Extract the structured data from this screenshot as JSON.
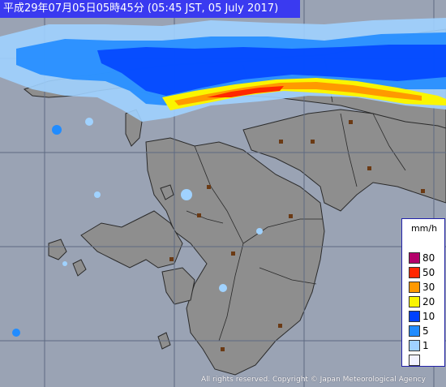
{
  "header": {
    "title": "平成29年07月05日05時45分 (05:45 JST, 05 July 2017)"
  },
  "legend": {
    "unit": "mm/h",
    "items": [
      {
        "label": "80",
        "color": "#b4006a"
      },
      {
        "label": "50",
        "color": "#ff2800"
      },
      {
        "label": "30",
        "color": "#ff9900"
      },
      {
        "label": "20",
        "color": "#faf500"
      },
      {
        "label": "10",
        "color": "#0041ff"
      },
      {
        "label": "5",
        "color": "#218cff"
      },
      {
        "label": "1",
        "color": "#a0d2ff"
      },
      {
        "label": "",
        "color": "#f2f2ff"
      }
    ]
  },
  "footer": {
    "copyright": "All rights reserved. Copyright © Japan Meteorological Agency"
  },
  "colors": {
    "sea": "#9aa3b4",
    "land": "#8e8e8e",
    "grid": "#5d6a82",
    "title_bg": "#3a3af0"
  }
}
